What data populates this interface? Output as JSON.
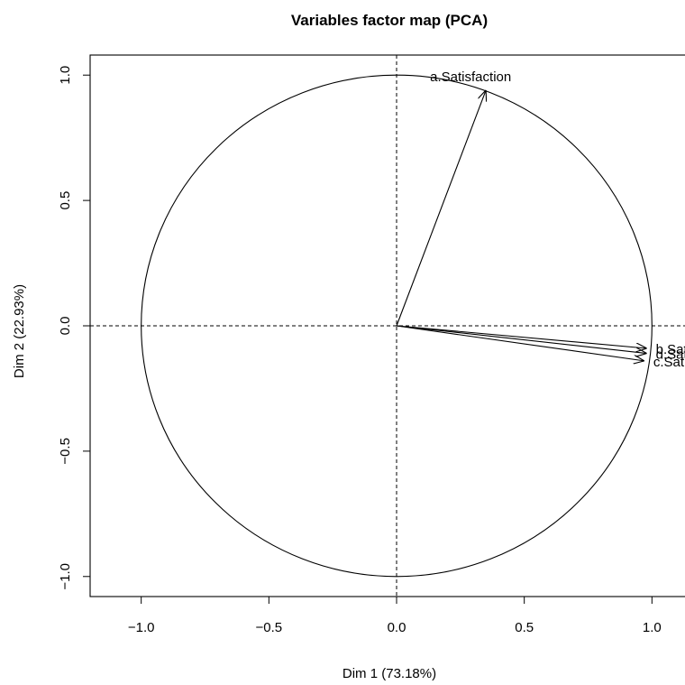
{
  "chart_data": {
    "type": "scatter",
    "title": "Variables factor map (PCA)",
    "xlabel": "Dim 1 (73.18%)",
    "ylabel": "Dim 2 (22.93%)",
    "xlim": [
      -1.2,
      1.2
    ],
    "ylim": [
      -1.08,
      1.08
    ],
    "xticks": [
      -1.0,
      -0.5,
      0.0,
      0.5,
      1.0
    ],
    "yticks": [
      -1.0,
      -0.5,
      0.0,
      0.5,
      1.0
    ],
    "xtick_labels": [
      "−1.0",
      "−0.5",
      "0.0",
      "0.5",
      "1.0"
    ],
    "ytick_labels": [
      "−1.0",
      "−0.5",
      "0.0",
      "0.5",
      "1.0"
    ],
    "unit_circle": true,
    "reference_lines": [
      0,
      0
    ],
    "variables": [
      {
        "label": "a.Satisfaction",
        "x": 0.35,
        "y": 0.94
      },
      {
        "label": "b.Satisfaction",
        "x": 0.98,
        "y": -0.09
      },
      {
        "label": "d.Satisfaction",
        "x": 0.98,
        "y": -0.11
      },
      {
        "label": "c.Satisfaction",
        "x": 0.97,
        "y": -0.14
      }
    ],
    "grid": false,
    "colors": {
      "ink": "#000000",
      "background": "#ffffff"
    }
  }
}
